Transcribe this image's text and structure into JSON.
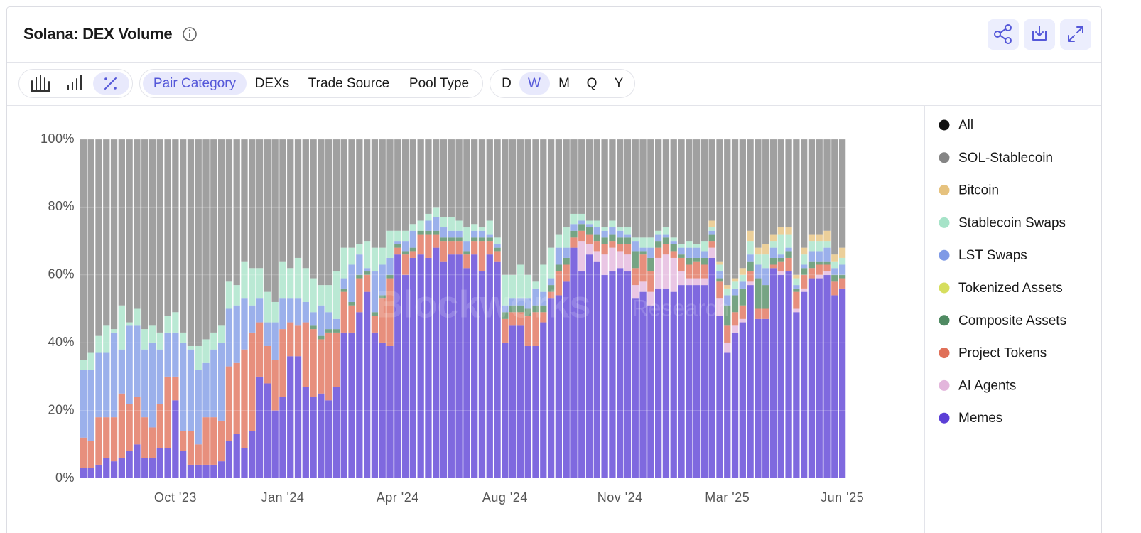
{
  "header": {
    "title": "Solana: DEX Volume"
  },
  "toolbar": {
    "groups": [
      "Pair Category",
      "DEXs",
      "Trade Source",
      "Pool Type"
    ],
    "periods": [
      "D",
      "W",
      "M",
      "Q",
      "Y"
    ]
  },
  "chart_data": {
    "type": "bar",
    "stacked": true,
    "watermark": [
      "Blockworks",
      "Research"
    ],
    "categories": [
      null,
      null,
      null,
      null,
      null,
      null,
      null,
      null,
      null,
      null,
      null,
      null,
      "Oct '23",
      null,
      null,
      null,
      null,
      null,
      null,
      null,
      null,
      null,
      null,
      null,
      null,
      null,
      "Jan '24",
      null,
      null,
      null,
      null,
      null,
      null,
      null,
      null,
      null,
      null,
      null,
      null,
      null,
      null,
      "Apr '24",
      null,
      null,
      null,
      null,
      null,
      null,
      null,
      null,
      null,
      null,
      null,
      null,
      null,
      "Aug '24",
      null,
      null,
      null,
      null,
      null,
      null,
      null,
      null,
      null,
      null,
      null,
      null,
      null,
      null,
      "Nov '24",
      null,
      null,
      null,
      null,
      null,
      null,
      null,
      null,
      null,
      null,
      null,
      null,
      null,
      "Mar '25",
      null,
      null,
      null,
      null,
      null,
      null,
      null,
      null,
      null,
      null,
      null,
      null,
      null,
      null,
      "Jun '25"
    ],
    "ylim": [
      0,
      100
    ],
    "yticks": [
      {
        "value": 0,
        "label": "0%"
      },
      {
        "value": 20,
        "label": "20%"
      },
      {
        "value": 40,
        "label": "40%"
      },
      {
        "value": 60,
        "label": "60%"
      },
      {
        "value": 80,
        "label": "80%"
      },
      {
        "value": 100,
        "label": "100%"
      }
    ],
    "grid": true,
    "legend_total": {
      "name": "All",
      "color": "#111111"
    },
    "series": [
      {
        "name": "Memes",
        "color": "#5b3fd6",
        "values": [
          3,
          3,
          4,
          6,
          5,
          6,
          8,
          10,
          6,
          6,
          9,
          9,
          23,
          8,
          4,
          4,
          4,
          4,
          5,
          11,
          13,
          9,
          14,
          30,
          28,
          20,
          24,
          36,
          36,
          27,
          24,
          25,
          23,
          27,
          43,
          43,
          49,
          55,
          43,
          40,
          39,
          66,
          60,
          65,
          66,
          65,
          68,
          64,
          66,
          66,
          62,
          66,
          61,
          66,
          64,
          40,
          45,
          45,
          39,
          39,
          46,
          53,
          54,
          58,
          68,
          61,
          66,
          64,
          60,
          61,
          62,
          61,
          53,
          55,
          51,
          56,
          56,
          55,
          57,
          57,
          57,
          57,
          65,
          48,
          37,
          43,
          46,
          57,
          47,
          47,
          62,
          60,
          61,
          49,
          55,
          59,
          59,
          60,
          54,
          56
        ]
      },
      {
        "name": "AI Agents",
        "color": "#e3b6dc",
        "values": [
          0,
          0,
          0,
          0,
          0,
          0,
          0,
          0,
          0,
          0,
          0,
          0,
          0,
          0,
          0,
          0,
          0,
          0,
          0,
          0,
          0,
          0,
          0,
          0,
          0,
          0,
          0,
          0,
          0,
          0,
          0,
          0,
          0,
          0,
          0,
          0,
          0,
          0,
          0,
          0,
          0,
          0,
          0,
          0,
          0,
          0,
          0,
          0,
          0,
          0,
          0,
          0,
          0,
          0,
          0,
          0,
          0,
          0,
          0,
          0,
          0,
          0,
          0,
          0,
          0,
          9,
          3,
          3,
          6,
          7,
          5,
          5,
          4,
          3,
          4,
          9,
          10,
          10,
          4,
          2,
          2,
          2,
          3,
          5,
          3,
          2,
          1,
          1,
          0,
          0,
          0,
          1,
          0,
          1,
          1,
          0,
          1,
          1,
          0,
          0
        ]
      },
      {
        "name": "Project Tokens",
        "color": "#e07058",
        "values": [
          9,
          8,
          14,
          12,
          13,
          19,
          14,
          14,
          12,
          9,
          13,
          21,
          7,
          6,
          10,
          6,
          14,
          14,
          12,
          22,
          21,
          29,
          29,
          16,
          11,
          15,
          20,
          10,
          9,
          19,
          20,
          16,
          20,
          16,
          12,
          8,
          10,
          5,
          5,
          13,
          20,
          2,
          6,
          2,
          6,
          7,
          4,
          6,
          4,
          4,
          4,
          4,
          9,
          4,
          3,
          7,
          4,
          4,
          9,
          10,
          3,
          2,
          7,
          5,
          3,
          3,
          3,
          3,
          3,
          2,
          2,
          3,
          5,
          8,
          6,
          3,
          3,
          2,
          4,
          4,
          5,
          4,
          2,
          5,
          5,
          4,
          4,
          3,
          3,
          3,
          1,
          3,
          4,
          5,
          4,
          3,
          3,
          2,
          4,
          3
        ]
      },
      {
        "name": "Composite Assets",
        "color": "#4f8a62",
        "values": [
          0,
          0,
          0,
          0,
          0,
          0,
          0,
          0,
          0,
          0,
          0,
          0,
          0,
          0,
          0,
          0,
          0,
          0,
          0,
          0,
          0,
          0,
          0,
          0,
          0,
          0,
          0,
          0,
          0,
          0,
          1,
          1,
          1,
          1,
          1,
          1,
          1,
          1,
          1,
          1,
          1,
          1,
          1,
          1,
          1,
          1,
          1,
          1,
          1,
          1,
          1,
          1,
          1,
          1,
          1,
          2,
          2,
          2,
          2,
          2,
          2,
          2,
          2,
          2,
          2,
          2,
          2,
          2,
          2,
          2,
          2,
          2,
          5,
          1,
          4,
          2,
          2,
          2,
          1,
          2,
          1,
          2,
          2,
          1,
          6,
          5,
          5,
          3,
          9,
          7,
          2,
          1,
          2,
          1,
          2,
          2,
          1,
          1,
          2,
          1
        ]
      },
      {
        "name": "Tokenized Assets",
        "color": "#d6de5e",
        "values": [
          0,
          0,
          0,
          0,
          0,
          0,
          0,
          0,
          0,
          0,
          0,
          0,
          0,
          0,
          0,
          0,
          0,
          0,
          0,
          0,
          0,
          0,
          0,
          0,
          0,
          0,
          0,
          0,
          0,
          0,
          0,
          0,
          0,
          0,
          0,
          0,
          0,
          0,
          0,
          0,
          0,
          0,
          0,
          0,
          0,
          0,
          0,
          0,
          0,
          0,
          0,
          0,
          0,
          0,
          0,
          0,
          0,
          0,
          0,
          0,
          0,
          0,
          0,
          0,
          0,
          0,
          0,
          0,
          0,
          0,
          0,
          0,
          0,
          0,
          0,
          0,
          0,
          0,
          0,
          0,
          0,
          0,
          0,
          0,
          0,
          0,
          0,
          0,
          0,
          0,
          0,
          0,
          0,
          0,
          0,
          0,
          0,
          0,
          0,
          0
        ]
      },
      {
        "name": "LST Swaps",
        "color": "#7f9ae6",
        "values": [
          20,
          21,
          19,
          19,
          25,
          13,
          23,
          21,
          20,
          25,
          16,
          13,
          13,
          26,
          24,
          22,
          16,
          20,
          23,
          17,
          17,
          15,
          8,
          7,
          7,
          11,
          9,
          7,
          8,
          6,
          4,
          9,
          5,
          3,
          3,
          11,
          6,
          1,
          12,
          9,
          5,
          1,
          3,
          5,
          0,
          3,
          4,
          3,
          2,
          2,
          3,
          2,
          2,
          1,
          1,
          2,
          2,
          2,
          3,
          5,
          4,
          2,
          5,
          3,
          2,
          1,
          1,
          2,
          2,
          2,
          2,
          1,
          3,
          1,
          3,
          2,
          1,
          1,
          2,
          3,
          3,
          2,
          1,
          2,
          3,
          2,
          2,
          2,
          4,
          5,
          3,
          1,
          1,
          1,
          1,
          3,
          3,
          4,
          2,
          3
        ]
      },
      {
        "name": "Stablecoin Swaps",
        "color": "#a6e3c8",
        "values": [
          3,
          5,
          5,
          8,
          1,
          13,
          1,
          5,
          6,
          5,
          5,
          5,
          6,
          3,
          1,
          7,
          7,
          5,
          5,
          8,
          6,
          11,
          11,
          9,
          9,
          6,
          11,
          9,
          12,
          10,
          10,
          6,
          8,
          14,
          9,
          5,
          3,
          8,
          7,
          5,
          8,
          3,
          3,
          2,
          3,
          2,
          3,
          3,
          4,
          3,
          4,
          2,
          1,
          4,
          2,
          9,
          7,
          10,
          7,
          2,
          8,
          9,
          4,
          6,
          3,
          2,
          1,
          2,
          1,
          2,
          1,
          2,
          1,
          3,
          3,
          1,
          2,
          1,
          1,
          2,
          1,
          3,
          1,
          2,
          2,
          2,
          2,
          4,
          3,
          4,
          2,
          6,
          4,
          2,
          3,
          3,
          3,
          2,
          2,
          2
        ]
      },
      {
        "name": "Bitcoin",
        "color": "#e6c27e",
        "values": [
          0,
          0,
          0,
          0,
          0,
          0,
          0,
          0,
          0,
          0,
          0,
          0,
          0,
          0,
          0,
          0,
          0,
          0,
          0,
          0,
          0,
          0,
          0,
          0,
          0,
          0,
          0,
          0,
          0,
          0,
          0,
          0,
          0,
          0,
          0,
          0,
          0,
          0,
          0,
          0,
          0,
          0,
          0,
          0,
          0,
          0,
          0,
          0,
          0,
          0,
          0,
          0,
          0,
          0,
          0,
          0,
          0,
          0,
          0,
          0,
          0,
          0,
          0,
          0,
          0,
          0,
          0,
          0,
          0,
          0,
          0,
          0,
          0,
          0,
          0,
          0,
          0,
          0,
          0,
          0,
          0,
          0,
          2,
          1,
          1,
          1,
          2,
          3,
          2,
          3,
          2,
          2,
          2,
          1,
          2,
          2,
          2,
          3,
          2,
          3
        ]
      },
      {
        "name": "SOL-Stablecoin",
        "color": "#858585",
        "values": [
          65,
          63,
          58,
          55,
          56,
          49,
          54,
          50,
          56,
          55,
          57,
          52,
          51,
          57,
          61,
          61,
          59,
          57,
          55,
          42,
          43,
          36,
          38,
          38,
          45,
          48,
          36,
          38,
          35,
          38,
          41,
          43,
          43,
          39,
          32,
          32,
          31,
          30,
          32,
          32,
          27,
          27,
          27,
          25,
          24,
          22,
          20,
          23,
          23,
          24,
          26,
          25,
          26,
          24,
          29,
          40,
          40,
          37,
          40,
          42,
          37,
          32,
          28,
          26,
          22,
          22,
          24,
          24,
          26,
          24,
          26,
          26,
          29,
          29,
          29,
          27,
          26,
          29,
          31,
          30,
          31,
          30,
          24,
          36,
          43,
          41,
          38,
          27,
          32,
          31,
          28,
          26,
          26,
          40,
          32,
          28,
          28,
          27,
          34,
          32
        ]
      }
    ]
  }
}
